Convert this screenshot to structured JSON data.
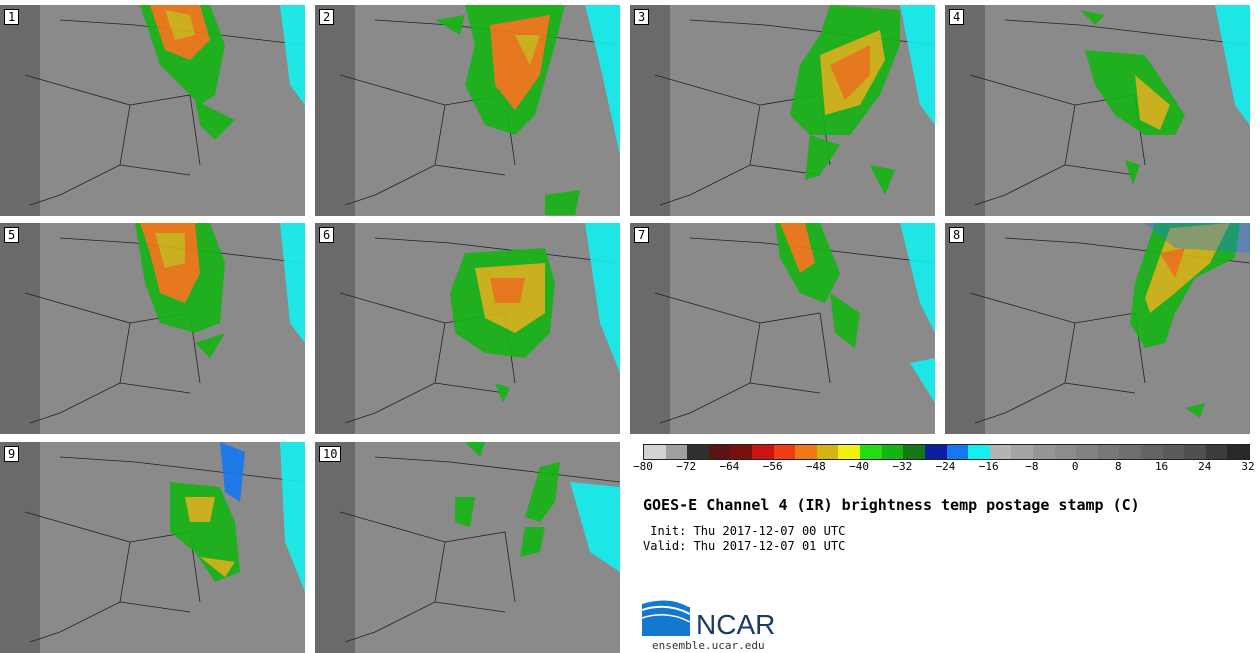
{
  "panels": [
    {
      "label": "1"
    },
    {
      "label": "2"
    },
    {
      "label": "3"
    },
    {
      "label": "4"
    },
    {
      "label": "5"
    },
    {
      "label": "6"
    },
    {
      "label": "7"
    },
    {
      "label": "8"
    },
    {
      "label": "9"
    },
    {
      "label": "10"
    }
  ],
  "colorbar": {
    "colors": [
      "#d2d2d2",
      "#a0a0a0",
      "#303030",
      "#5a1414",
      "#781010",
      "#c81414",
      "#f03c14",
      "#f07814",
      "#d2b414",
      "#f0f014",
      "#28dc14",
      "#14b414",
      "#147814",
      "#0a1ea0",
      "#1478f0",
      "#14f0f0",
      "#b4b4b4",
      "#a5a5a5",
      "#969696",
      "#8c8c8c",
      "#828282",
      "#787878",
      "#6e6e6e",
      "#646464",
      "#5a5a5a",
      "#505050",
      "#3c3c3c",
      "#282828"
    ],
    "ticks": [
      "−80",
      "−72",
      "−64",
      "−56",
      "−48",
      "−40",
      "−32",
      "−24",
      "−16",
      "−8",
      "0",
      "8",
      "16",
      "24",
      "32"
    ]
  },
  "title": "GOES-E Channel 4 (IR) brightness temp postage stamp (C)",
  "init_text": " Init: Thu 2017-12-07 00 UTC",
  "valid_text": "Valid: Thu 2017-12-07 01 UTC",
  "logo": {
    "text": "NCAR",
    "url": "ensemble.ucar.edu"
  }
}
